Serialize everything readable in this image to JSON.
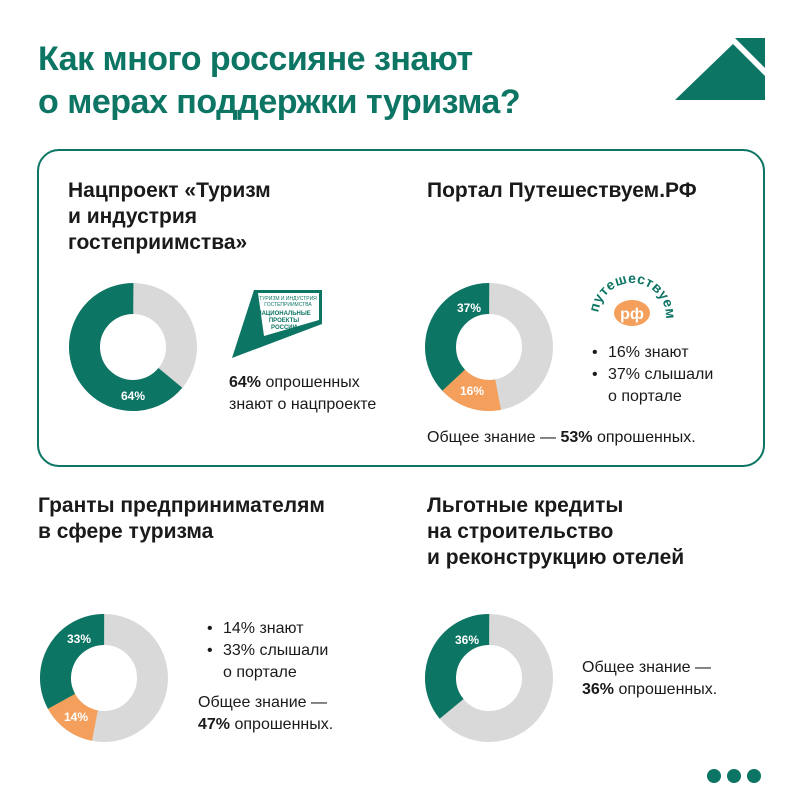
{
  "title": {
    "line1": "Как много россияне знают",
    "line2": "о мерах поддержки туризма?"
  },
  "colors": {
    "green": "#0d7564",
    "gray": "#d9d9d9",
    "orange": "#f4a05c"
  },
  "natsproekt": {
    "heading": {
      "line1": "Нацпроект «Туризм",
      "line2": "и индустрия",
      "line3": "гостеприимства»"
    },
    "donut_label": "64%",
    "value_pct": 64,
    "logo": {
      "line1": "ТУРИЗМ И ИНДУСТРИЯ",
      "line2": "ГОСТЕПРИИМСТВА",
      "line3": "НАЦИОНАЛЬНЫЕ",
      "line4": "ПРОЕКТЫ",
      "line5": "РОССИИ"
    },
    "text": {
      "pct": "64%",
      "rest": " опрошенных",
      "line2": "знают о нацпроекте"
    }
  },
  "portal": {
    "heading": "Портал Путешествуем.РФ",
    "donut": {
      "heard_label": "37%",
      "know_label": "16%",
      "heard_pct": 37,
      "know_pct": 16
    },
    "logo": {
      "word": "путешествуем",
      "badge": "рф"
    },
    "bullets": [
      {
        "line1": "16% знают"
      },
      {
        "line1": "37% слышали",
        "line2": "о портале"
      }
    ],
    "total": {
      "prefix": "Общее знание — ",
      "pct": "53%",
      "suffix": " опрошенных."
    }
  },
  "grants": {
    "heading": {
      "line1": "Гранты предпринимателям",
      "line2": "в сфере туризма"
    },
    "donut": {
      "heard_label": "33%",
      "know_label": "14%",
      "heard_pct": 33,
      "know_pct": 14
    },
    "bullets": [
      {
        "line1": "14% знают"
      },
      {
        "line1": "33% слышали",
        "line2": "о портале"
      }
    ],
    "total": {
      "line1": "Общее знание —",
      "pct": "47%",
      "suffix": " опрошенных."
    }
  },
  "credits": {
    "heading": {
      "line1": "Льготные кредиты",
      "line2": "на строительство",
      "line3": "и реконструкцию отелей"
    },
    "donut": {
      "label": "36%",
      "pct": 36
    },
    "total": {
      "line1": "Общее знание —",
      "pct": "36%",
      "suffix": " опрошенных."
    }
  }
}
